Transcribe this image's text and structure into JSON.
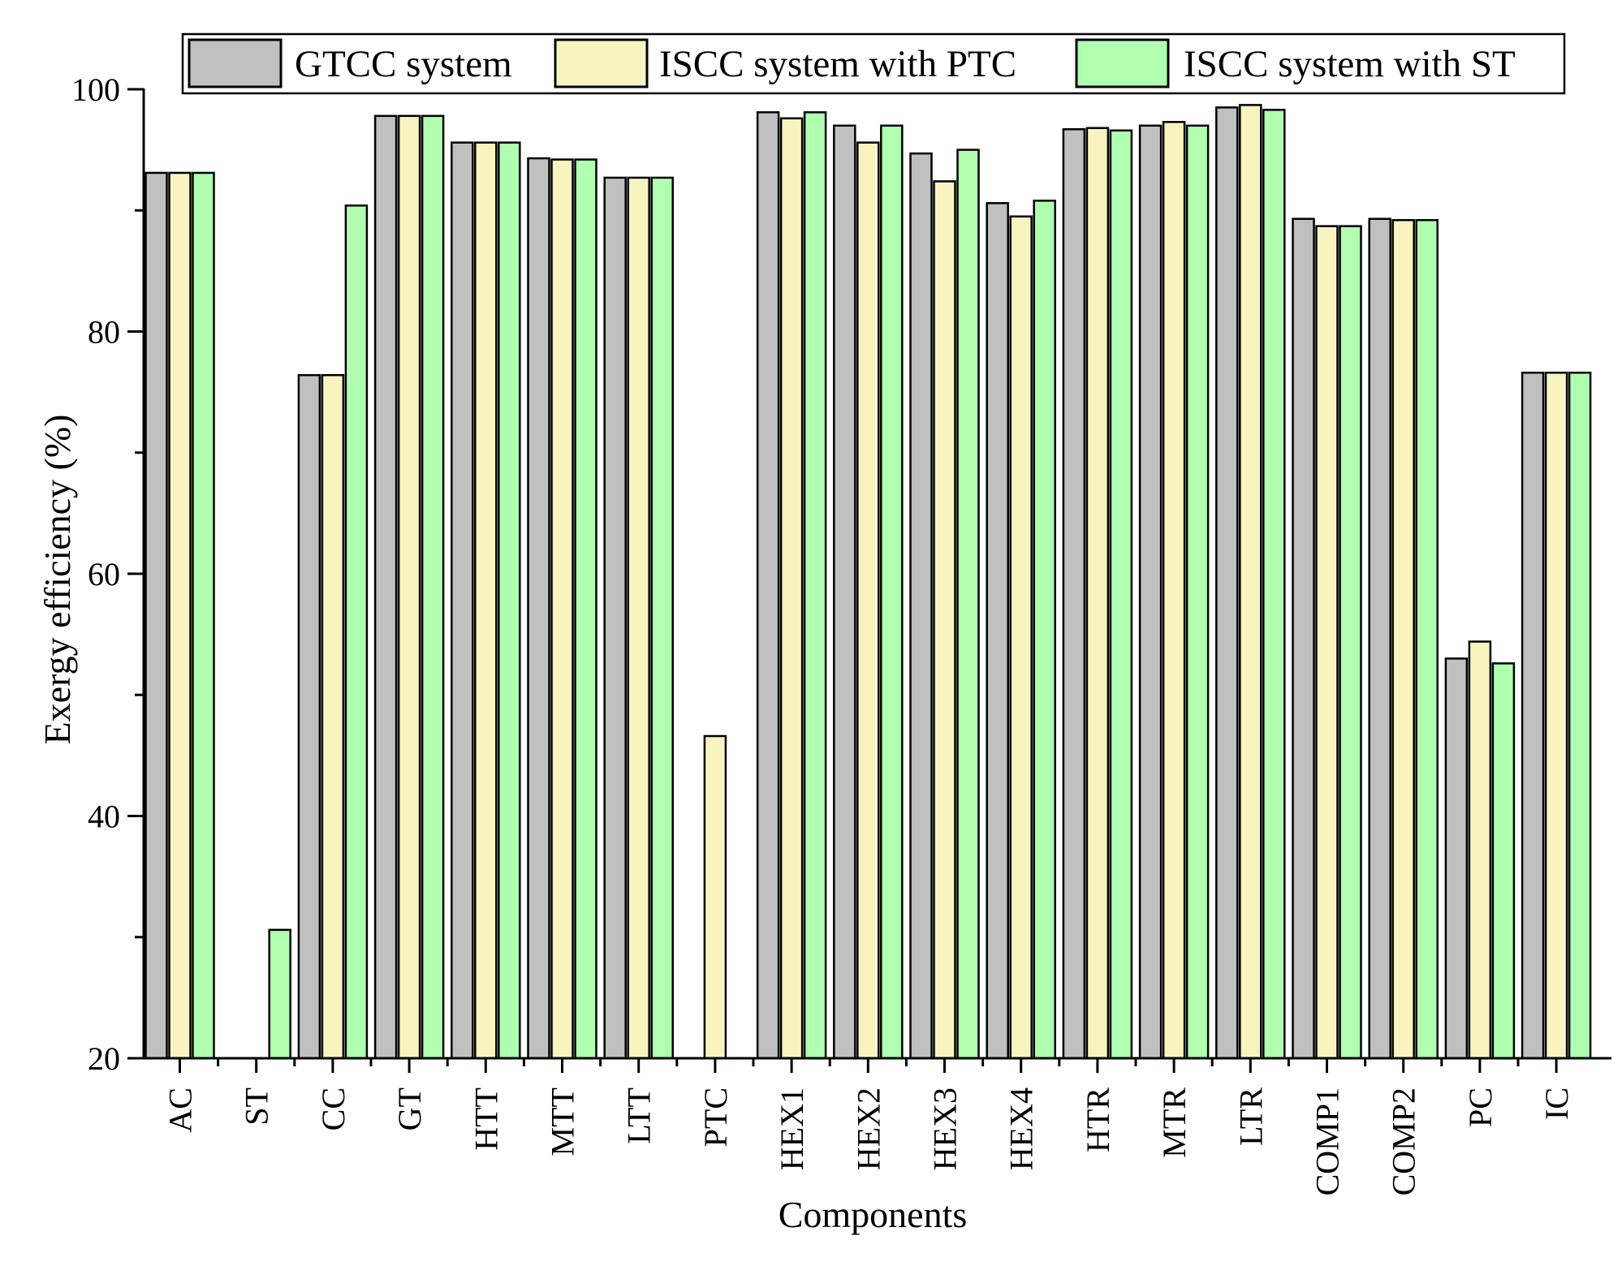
{
  "chart_data": {
    "type": "bar",
    "title": "",
    "xlabel": "Components",
    "ylabel": "Exergy efficiency (%)",
    "ylim": [
      20,
      100
    ],
    "yticks": [
      20,
      40,
      60,
      80,
      100
    ],
    "grid": false,
    "legend_position": "top",
    "categories": [
      "AC",
      "ST",
      "CC",
      "GT",
      "HTT",
      "MTT",
      "LTT",
      "PTC",
      "HEX1",
      "HEX2",
      "HEX3",
      "HEX4",
      "HTR",
      "MTR",
      "LTR",
      "COMP1",
      "COMP2",
      "PC",
      "IC"
    ],
    "series": [
      {
        "name": "GTCC system",
        "color": "#c0c0c0",
        "values": [
          93.1,
          null,
          76.4,
          97.8,
          95.6,
          94.3,
          92.7,
          null,
          98.1,
          97.0,
          94.7,
          90.6,
          96.7,
          97.0,
          98.5,
          89.3,
          89.3,
          53.0,
          76.6
        ]
      },
      {
        "name": "ISCC system with PTC",
        "color": "#f8f4c0",
        "values": [
          93.1,
          null,
          76.4,
          97.8,
          95.6,
          94.2,
          92.7,
          46.6,
          97.6,
          95.6,
          92.4,
          89.5,
          96.8,
          97.3,
          98.7,
          88.7,
          89.2,
          54.4,
          76.6
        ]
      },
      {
        "name": "ISCC system with ST",
        "color": "#b0ffb0",
        "values": [
          93.1,
          30.6,
          90.4,
          97.8,
          95.6,
          94.2,
          92.7,
          null,
          98.1,
          97.0,
          95.0,
          90.8,
          96.6,
          97.0,
          98.3,
          88.7,
          89.2,
          52.6,
          76.6
        ]
      }
    ]
  }
}
